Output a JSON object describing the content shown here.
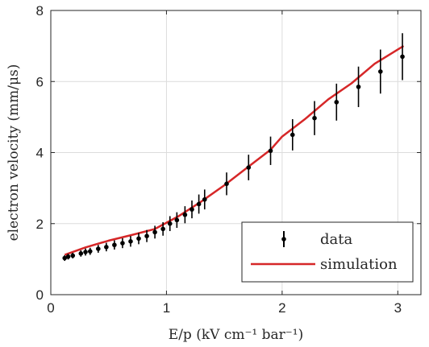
{
  "chart_data": {
    "type": "scatter",
    "xlabel": "E/p (kV cm⁻¹ bar⁻¹)",
    "ylabel": "electron velocity (mm/μs)",
    "xlim": [
      0,
      3.2
    ],
    "ylim": [
      0,
      8
    ],
    "x_ticks": [
      0,
      1,
      2,
      3
    ],
    "y_ticks": [
      0,
      2,
      4,
      6,
      8
    ],
    "grid": true,
    "legend_position": "bottom-right",
    "series": [
      {
        "name": "data",
        "kind": "errorbar",
        "color": "#000000",
        "points": [
          {
            "x": 0.12,
            "y": 1.03,
            "err": 0.08
          },
          {
            "x": 0.15,
            "y": 1.07,
            "err": 0.08
          },
          {
            "x": 0.19,
            "y": 1.1,
            "err": 0.08
          },
          {
            "x": 0.26,
            "y": 1.16,
            "err": 0.09
          },
          {
            "x": 0.3,
            "y": 1.2,
            "err": 0.1
          },
          {
            "x": 0.34,
            "y": 1.22,
            "err": 0.1
          },
          {
            "x": 0.41,
            "y": 1.29,
            "err": 0.11
          },
          {
            "x": 0.48,
            "y": 1.34,
            "err": 0.12
          },
          {
            "x": 0.55,
            "y": 1.4,
            "err": 0.13
          },
          {
            "x": 0.62,
            "y": 1.45,
            "err": 0.14
          },
          {
            "x": 0.69,
            "y": 1.5,
            "err": 0.15
          },
          {
            "x": 0.76,
            "y": 1.58,
            "err": 0.16
          },
          {
            "x": 0.83,
            "y": 1.65,
            "err": 0.17
          },
          {
            "x": 0.9,
            "y": 1.76,
            "err": 0.18
          },
          {
            "x": 0.97,
            "y": 1.85,
            "err": 0.19
          },
          {
            "x": 1.03,
            "y": 2.0,
            "err": 0.21
          },
          {
            "x": 1.09,
            "y": 2.1,
            "err": 0.22
          },
          {
            "x": 1.16,
            "y": 2.25,
            "err": 0.24
          },
          {
            "x": 1.22,
            "y": 2.4,
            "err": 0.25
          },
          {
            "x": 1.28,
            "y": 2.55,
            "err": 0.27
          },
          {
            "x": 1.33,
            "y": 2.68,
            "err": 0.28
          },
          {
            "x": 1.52,
            "y": 3.12,
            "err": 0.32
          },
          {
            "x": 1.71,
            "y": 3.58,
            "err": 0.36
          },
          {
            "x": 1.9,
            "y": 4.05,
            "err": 0.4
          },
          {
            "x": 2.09,
            "y": 4.5,
            "err": 0.44
          },
          {
            "x": 2.28,
            "y": 4.97,
            "err": 0.48
          },
          {
            "x": 2.47,
            "y": 5.42,
            "err": 0.52
          },
          {
            "x": 2.66,
            "y": 5.85,
            "err": 0.57
          },
          {
            "x": 2.85,
            "y": 6.28,
            "err": 0.62
          },
          {
            "x": 3.04,
            "y": 6.7,
            "err": 0.66
          }
        ]
      },
      {
        "name": "simulation",
        "kind": "line",
        "color": "#d62728",
        "points": [
          {
            "x": 0.12,
            "y": 1.12
          },
          {
            "x": 0.3,
            "y": 1.33
          },
          {
            "x": 0.5,
            "y": 1.52
          },
          {
            "x": 0.7,
            "y": 1.68
          },
          {
            "x": 0.9,
            "y": 1.85
          },
          {
            "x": 1.1,
            "y": 2.2
          },
          {
            "x": 1.3,
            "y": 2.62
          },
          {
            "x": 1.5,
            "y": 3.08
          },
          {
            "x": 1.7,
            "y": 3.58
          },
          {
            "x": 1.9,
            "y": 4.08
          },
          {
            "x": 2.0,
            "y": 4.45
          },
          {
            "x": 2.2,
            "y": 4.95
          },
          {
            "x": 2.4,
            "y": 5.5
          },
          {
            "x": 2.6,
            "y": 5.95
          },
          {
            "x": 2.8,
            "y": 6.5
          },
          {
            "x": 3.05,
            "y": 7.0
          }
        ]
      }
    ]
  }
}
